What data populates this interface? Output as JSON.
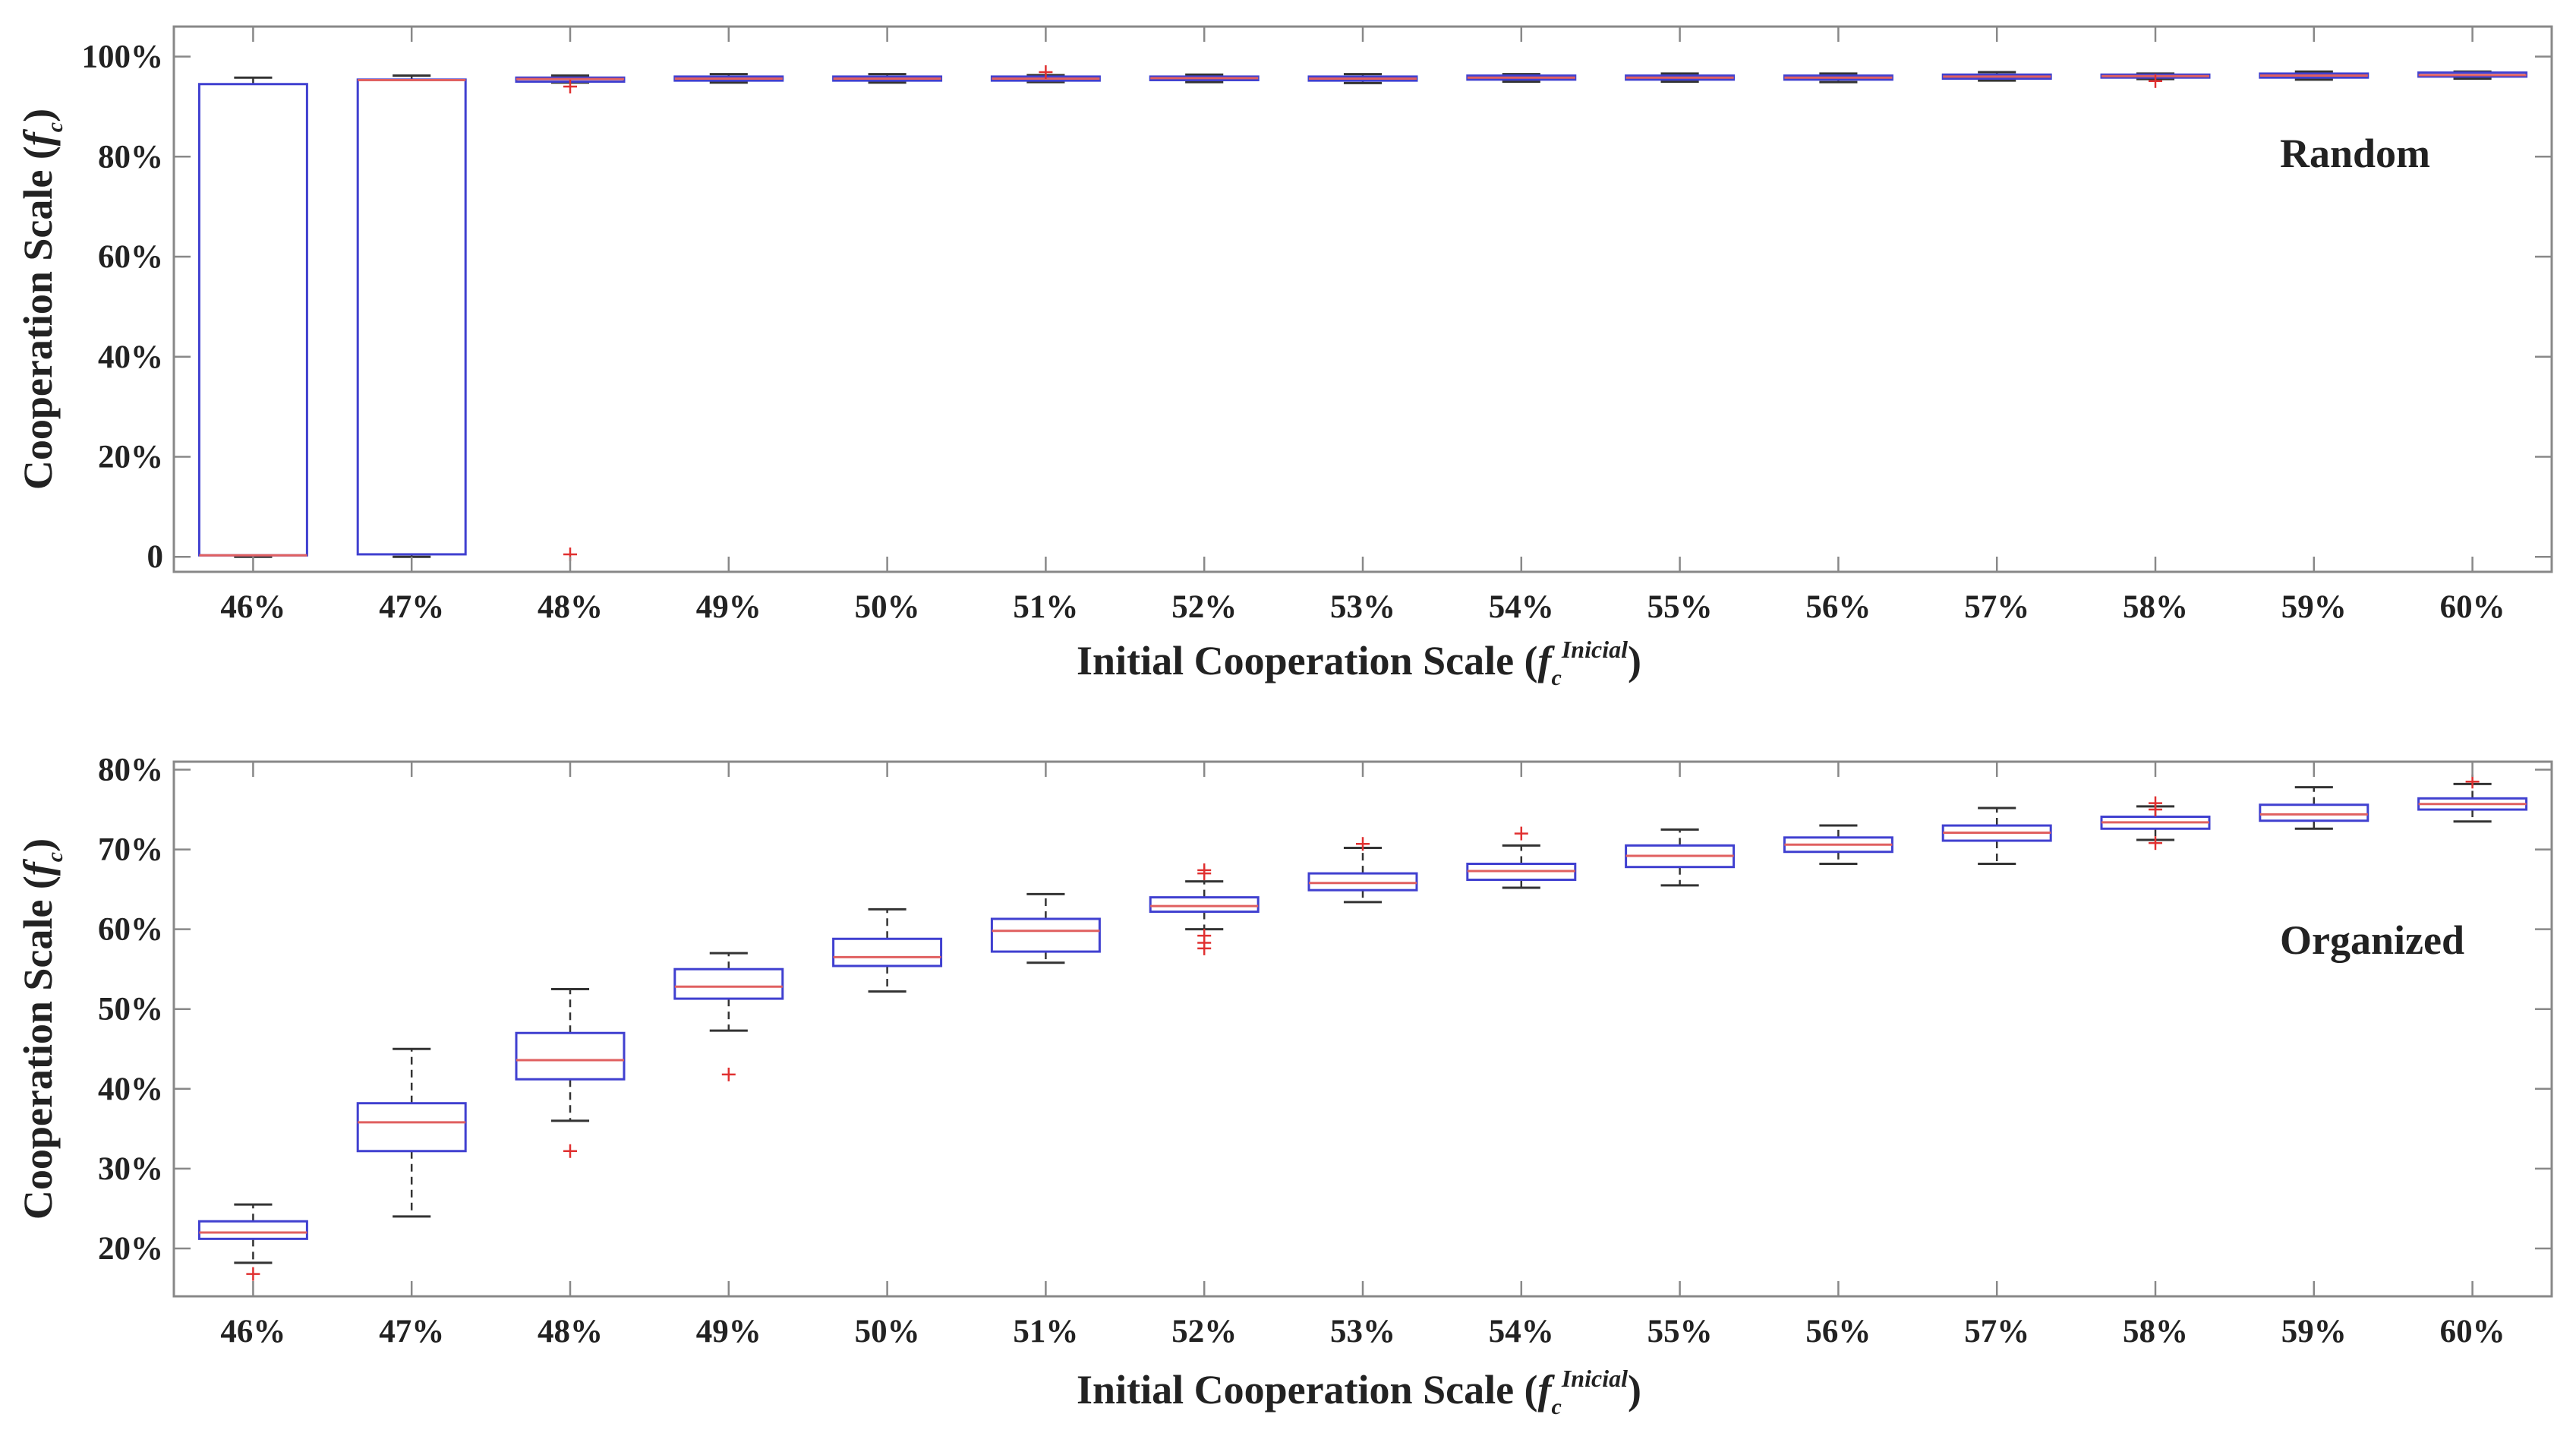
{
  "colors": {
    "box": "#4040d0",
    "median": "#e06060",
    "whisker": "#333333",
    "outlier": "#e03030",
    "axis": "#888888",
    "text": "#222222"
  },
  "chart_data": [
    {
      "type": "box",
      "annotation": "Random",
      "xlabel": {
        "main": "Initial Cooperation Scale (",
        "var": "f",
        "sub": "c",
        "sup": "Inicial",
        "close": ")"
      },
      "ylabel": {
        "main": "Cooperation Scale (",
        "var": "f",
        "sub": "c",
        "close": ")"
      },
      "ylim": [
        -3,
        106
      ],
      "yticks": [
        0,
        20,
        40,
        60,
        80,
        100
      ],
      "ytick_labels": [
        "0",
        "20%",
        "40%",
        "60%",
        "80%",
        "100%"
      ],
      "categories": [
        "46%",
        "47%",
        "48%",
        "49%",
        "50%",
        "51%",
        "52%",
        "53%",
        "54%",
        "55%",
        "56%",
        "57%",
        "58%",
        "59%",
        "60%"
      ],
      "boxes": [
        {
          "q1": 0.3,
          "median": 0.3,
          "q3": 94.5,
          "wlo": 0.0,
          "whi": 95.8,
          "outliers": []
        },
        {
          "q1": 0.5,
          "median": 95.3,
          "q3": 95.4,
          "wlo": 0.0,
          "whi": 96.2,
          "outliers": []
        },
        {
          "q1": 95.0,
          "median": 95.5,
          "q3": 95.8,
          "wlo": 94.8,
          "whi": 96.2,
          "outliers": [
            94.0,
            0.5
          ]
        },
        {
          "q1": 95.2,
          "median": 95.6,
          "q3": 96.0,
          "wlo": 94.8,
          "whi": 96.5,
          "outliers": []
        },
        {
          "q1": 95.2,
          "median": 95.6,
          "q3": 96.0,
          "wlo": 94.8,
          "whi": 96.5,
          "outliers": []
        },
        {
          "q1": 95.2,
          "median": 95.6,
          "q3": 96.0,
          "wlo": 94.9,
          "whi": 96.3,
          "outliers": [
            96.9
          ]
        },
        {
          "q1": 95.3,
          "median": 95.7,
          "q3": 96.0,
          "wlo": 94.9,
          "whi": 96.4,
          "outliers": []
        },
        {
          "q1": 95.2,
          "median": 95.6,
          "q3": 96.0,
          "wlo": 94.7,
          "whi": 96.5,
          "outliers": []
        },
        {
          "q1": 95.4,
          "median": 95.8,
          "q3": 96.2,
          "wlo": 95.0,
          "whi": 96.5,
          "outliers": []
        },
        {
          "q1": 95.4,
          "median": 95.8,
          "q3": 96.2,
          "wlo": 95.0,
          "whi": 96.6,
          "outliers": []
        },
        {
          "q1": 95.4,
          "median": 95.8,
          "q3": 96.2,
          "wlo": 94.9,
          "whi": 96.6,
          "outliers": []
        },
        {
          "q1": 95.6,
          "median": 96.0,
          "q3": 96.4,
          "wlo": 95.2,
          "whi": 96.9,
          "outliers": []
        },
        {
          "q1": 95.8,
          "median": 96.1,
          "q3": 96.4,
          "wlo": 95.5,
          "whi": 96.6,
          "outliers": [
            95.1
          ]
        },
        {
          "q1": 95.8,
          "median": 96.2,
          "q3": 96.6,
          "wlo": 95.4,
          "whi": 97.0,
          "outliers": []
        },
        {
          "q1": 96.0,
          "median": 96.3,
          "q3": 96.8,
          "wlo": 95.6,
          "whi": 97.0,
          "outliers": []
        }
      ]
    },
    {
      "type": "box",
      "annotation": "Organized",
      "xlabel": {
        "main": "Initial Cooperation Scale (",
        "var": "f",
        "sub": "c",
        "sup": "Inicial",
        "close": ")"
      },
      "ylabel": {
        "main": "Cooperation Scale (",
        "var": "f",
        "sub": "c",
        "close": ")"
      },
      "ylim": [
        14,
        81
      ],
      "yticks": [
        20,
        30,
        40,
        50,
        60,
        70,
        80
      ],
      "ytick_labels": [
        "20%",
        "30%",
        "40%",
        "50%",
        "60%",
        "70%",
        "80%"
      ],
      "categories": [
        "46%",
        "47%",
        "48%",
        "49%",
        "50%",
        "51%",
        "52%",
        "53%",
        "54%",
        "55%",
        "56%",
        "57%",
        "58%",
        "59%",
        "60%"
      ],
      "boxes": [
        {
          "q1": 21.2,
          "median": 22.0,
          "q3": 23.4,
          "wlo": 18.2,
          "whi": 25.5,
          "outliers": [
            16.8
          ]
        },
        {
          "q1": 32.2,
          "median": 35.8,
          "q3": 38.2,
          "wlo": 24.0,
          "whi": 45.0,
          "outliers": []
        },
        {
          "q1": 41.2,
          "median": 43.6,
          "q3": 47.0,
          "wlo": 36.0,
          "whi": 52.5,
          "outliers": [
            32.2
          ]
        },
        {
          "q1": 51.3,
          "median": 52.8,
          "q3": 55.0,
          "wlo": 47.3,
          "whi": 57.0,
          "outliers": [
            41.8
          ]
        },
        {
          "q1": 55.4,
          "median": 56.5,
          "q3": 58.8,
          "wlo": 52.2,
          "whi": 62.5,
          "outliers": []
        },
        {
          "q1": 57.2,
          "median": 59.8,
          "q3": 61.3,
          "wlo": 55.8,
          "whi": 64.4,
          "outliers": []
        },
        {
          "q1": 62.2,
          "median": 62.9,
          "q3": 64.0,
          "wlo": 60.0,
          "whi": 66.0,
          "outliers": [
            67.4,
            67.0,
            59.2,
            58.3,
            57.6
          ]
        },
        {
          "q1": 64.9,
          "median": 65.8,
          "q3": 67.0,
          "wlo": 63.4,
          "whi": 70.2,
          "outliers": [
            70.7
          ]
        },
        {
          "q1": 66.2,
          "median": 67.3,
          "q3": 68.2,
          "wlo": 65.2,
          "whi": 70.5,
          "outliers": [
            72.0
          ]
        },
        {
          "q1": 67.8,
          "median": 69.2,
          "q3": 70.5,
          "wlo": 65.5,
          "whi": 72.5,
          "outliers": []
        },
        {
          "q1": 69.7,
          "median": 70.6,
          "q3": 71.5,
          "wlo": 68.2,
          "whi": 73.0,
          "outliers": []
        },
        {
          "q1": 71.1,
          "median": 72.1,
          "q3": 73.0,
          "wlo": 68.2,
          "whi": 75.2,
          "outliers": []
        },
        {
          "q1": 72.6,
          "median": 73.4,
          "q3": 74.1,
          "wlo": 71.2,
          "whi": 75.4,
          "outliers": [
            75.8,
            75.0,
            70.8
          ]
        },
        {
          "q1": 73.6,
          "median": 74.4,
          "q3": 75.6,
          "wlo": 72.6,
          "whi": 77.8,
          "outliers": []
        },
        {
          "q1": 75.0,
          "median": 75.7,
          "q3": 76.4,
          "wlo": 73.5,
          "whi": 78.2,
          "outliers": [
            78.5
          ]
        }
      ]
    }
  ]
}
